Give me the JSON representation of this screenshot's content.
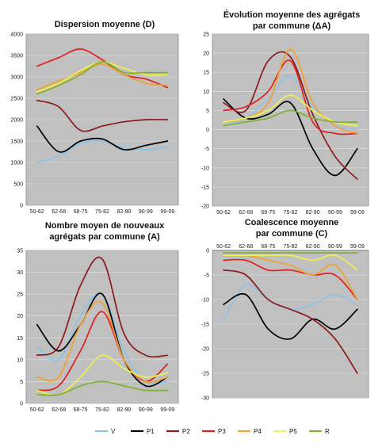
{
  "legend": [
    {
      "name": "V",
      "color": "#8cc3ea"
    },
    {
      "name": "P1",
      "color": "#000000"
    },
    {
      "name": "P2",
      "color": "#8b1a1a"
    },
    {
      "name": "P3",
      "color": "#e01f1f"
    },
    {
      "name": "P4",
      "color": "#f0a030"
    },
    {
      "name": "P5",
      "color": "#f0f050"
    },
    {
      "name": "R",
      "color": "#80b030"
    }
  ],
  "plot_background": "#c0c0c0",
  "chart_data": [
    {
      "type": "line",
      "title": "Dispersion moyenne (D)",
      "categories": [
        "50-62",
        "62-68",
        "68-75",
        "75-82",
        "82-90",
        "90-99",
        "99-09"
      ],
      "ylim": [
        0,
        4000
      ],
      "yticks": [
        0,
        500,
        1000,
        1500,
        2000,
        2500,
        3000,
        3500,
        4000
      ],
      "grid": true,
      "series": [
        {
          "name": "V",
          "values": [
            1000,
            1150,
            1450,
            1500,
            1350,
            1300,
            1350
          ]
        },
        {
          "name": "P1",
          "values": [
            1850,
            1250,
            1500,
            1550,
            1300,
            1400,
            1500
          ]
        },
        {
          "name": "P2",
          "values": [
            2450,
            2300,
            1750,
            1850,
            1950,
            2000,
            2000
          ]
        },
        {
          "name": "P3",
          "values": [
            3250,
            3450,
            3650,
            3400,
            3050,
            2950,
            2750
          ]
        },
        {
          "name": "P4",
          "values": [
            2700,
            2900,
            3100,
            3300,
            3050,
            2850,
            2800
          ]
        },
        {
          "name": "P5",
          "values": [
            2650,
            2850,
            3150,
            3350,
            3200,
            3050,
            3050
          ]
        },
        {
          "name": "R",
          "values": [
            2600,
            2800,
            3050,
            3350,
            3100,
            3100,
            3100
          ]
        }
      ]
    },
    {
      "type": "line",
      "title": "Évolution moyenne des agrégats par commune (ΔA)",
      "categories": [
        "50-62",
        "62-68",
        "68-75",
        "75-82",
        "82-90",
        "90-99",
        "99-09"
      ],
      "ylim": [
        -20,
        25
      ],
      "yticks": [
        -20,
        -15,
        -10,
        -5,
        0,
        5,
        10,
        15,
        20,
        25
      ],
      "grid": true,
      "series": [
        {
          "name": "V",
          "values": [
            1,
            3,
            8,
            14,
            6,
            1,
            0
          ]
        },
        {
          "name": "P1",
          "values": [
            8,
            3,
            4,
            7,
            -5,
            -12,
            -5
          ]
        },
        {
          "name": "P2",
          "values": [
            7,
            5,
            18,
            19,
            4,
            -7,
            -13
          ]
        },
        {
          "name": "P3",
          "values": [
            5,
            6,
            10,
            18,
            2,
            -1,
            -1
          ]
        },
        {
          "name": "P4",
          "values": [
            2,
            3,
            7,
            21,
            7,
            1,
            -1
          ]
        },
        {
          "name": "P5",
          "values": [
            2,
            3,
            5,
            9,
            5,
            2,
            1
          ]
        },
        {
          "name": "R",
          "values": [
            1,
            2,
            3,
            5,
            3,
            2,
            2
          ]
        }
      ]
    },
    {
      "type": "line",
      "title": "Nombre moyen de nouveaux agrégats par commune (A)",
      "categories": [
        "50-62",
        "62-68",
        "68-75",
        "75-82",
        "82-90",
        "90-99",
        "99-09"
      ],
      "ylim": [
        0,
        35
      ],
      "yticks": [
        0,
        5,
        10,
        15,
        20,
        25,
        30,
        35
      ],
      "grid": true,
      "series": [
        {
          "name": "V",
          "values": [
            13,
            10,
            20,
            25,
            12,
            5,
            5
          ]
        },
        {
          "name": "P1",
          "values": [
            18,
            12,
            18,
            25,
            10,
            4,
            6
          ]
        },
        {
          "name": "P2",
          "values": [
            11,
            13,
            27,
            33,
            16,
            11,
            11
          ]
        },
        {
          "name": "P3",
          "values": [
            3,
            4,
            12,
            21,
            10,
            5,
            9
          ]
        },
        {
          "name": "P4",
          "values": [
            6,
            6,
            18,
            23,
            10,
            5,
            6
          ]
        },
        {
          "name": "P5",
          "values": [
            3,
            2,
            6,
            11,
            8,
            6,
            7
          ]
        },
        {
          "name": "R",
          "values": [
            2,
            2,
            4,
            5,
            4,
            3,
            3
          ]
        }
      ]
    },
    {
      "type": "line",
      "title": "Coalescence moyenne par commune (C)",
      "categories": [
        "50-62",
        "62-68",
        "68-75",
        "75-82",
        "82-90",
        "90-99",
        "99-09"
      ],
      "ylim": [
        -30,
        0
      ],
      "yticks": [
        -30,
        -25,
        -20,
        -15,
        -10,
        -5,
        0
      ],
      "grid": true,
      "series": [
        {
          "name": "V",
          "values": [
            -14,
            -7,
            -10,
            -12,
            -11,
            -9,
            -11
          ]
        },
        {
          "name": "P1",
          "values": [
            -11,
            -9,
            -16,
            -18,
            -14,
            -16,
            -12
          ]
        },
        {
          "name": "P2",
          "values": [
            -4,
            -5,
            -10,
            -12,
            -14,
            -18,
            -25
          ]
        },
        {
          "name": "P3",
          "values": [
            -2,
            -2,
            -4,
            -4,
            -5,
            -5,
            -10
          ]
        },
        {
          "name": "P4",
          "values": [
            -1,
            -1,
            -2,
            -3,
            -5,
            -3,
            -10
          ]
        },
        {
          "name": "P5",
          "values": [
            -1,
            -1,
            -1,
            -1,
            -2,
            -1,
            -4
          ]
        },
        {
          "name": "R",
          "values": [
            -0.5,
            -0.5,
            -0.5,
            -0.5,
            -0.5,
            -0.5,
            -0.5
          ]
        }
      ]
    }
  ]
}
